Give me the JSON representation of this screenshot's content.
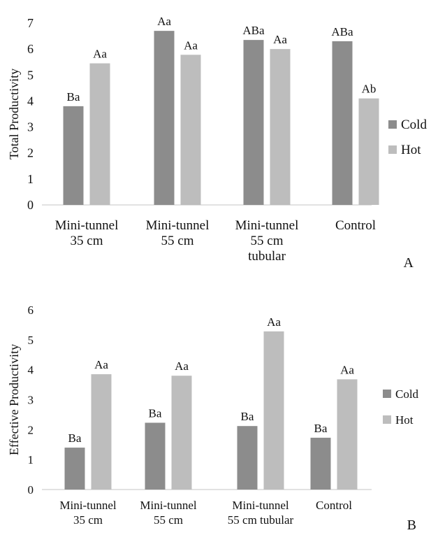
{
  "chart_data": [
    {
      "type": "bar",
      "panel_label": "A",
      "ylabel": "Total Productivity",
      "xlabel": "",
      "ylim": [
        0,
        7
      ],
      "yticks": [
        0,
        1,
        2,
        3,
        4,
        5,
        6,
        7
      ],
      "categories": [
        [
          "Mini-tunnel",
          "35 cm"
        ],
        [
          "Mini-tunnel",
          "55 cm"
        ],
        [
          "Mini-tunnel",
          "55 cm",
          "tubular"
        ],
        [
          "Control"
        ]
      ],
      "series": [
        {
          "name": "Cold",
          "color": "#8c8c8c",
          "values": [
            3.8,
            6.7,
            6.35,
            6.3
          ],
          "labels": [
            "Ba",
            "Aa",
            "ABa",
            "ABa"
          ]
        },
        {
          "name": "Hot",
          "color": "#bdbdbd",
          "values": [
            5.45,
            5.78,
            6.0,
            4.1
          ],
          "labels": [
            "Aa",
            "Aa",
            "Aa",
            "Ab"
          ]
        }
      ],
      "legend_position": "right",
      "grid": false
    },
    {
      "type": "bar",
      "panel_label": "B",
      "ylabel": "Effective Productivity",
      "xlabel": "",
      "ylim": [
        0,
        6
      ],
      "yticks": [
        0,
        1,
        2,
        3,
        4,
        5,
        6
      ],
      "categories": [
        [
          "Mini-tunnel",
          "35 cm"
        ],
        [
          "Mini-tunnel",
          "55 cm"
        ],
        [
          "Mini-tunnel",
          "55 cm tubular"
        ],
        [
          "Control"
        ]
      ],
      "series": [
        {
          "name": "Cold",
          "color": "#8c8c8c",
          "values": [
            1.4,
            2.23,
            2.12,
            1.73
          ],
          "labels": [
            "Ba",
            "Ba",
            "Ba",
            "Ba"
          ]
        },
        {
          "name": "Hot",
          "color": "#bdbdbd",
          "values": [
            3.85,
            3.8,
            5.28,
            3.68
          ],
          "labels": [
            "Aa",
            "Aa",
            "Aa",
            "Aa"
          ]
        }
      ],
      "legend_position": "right",
      "grid": false
    }
  ]
}
